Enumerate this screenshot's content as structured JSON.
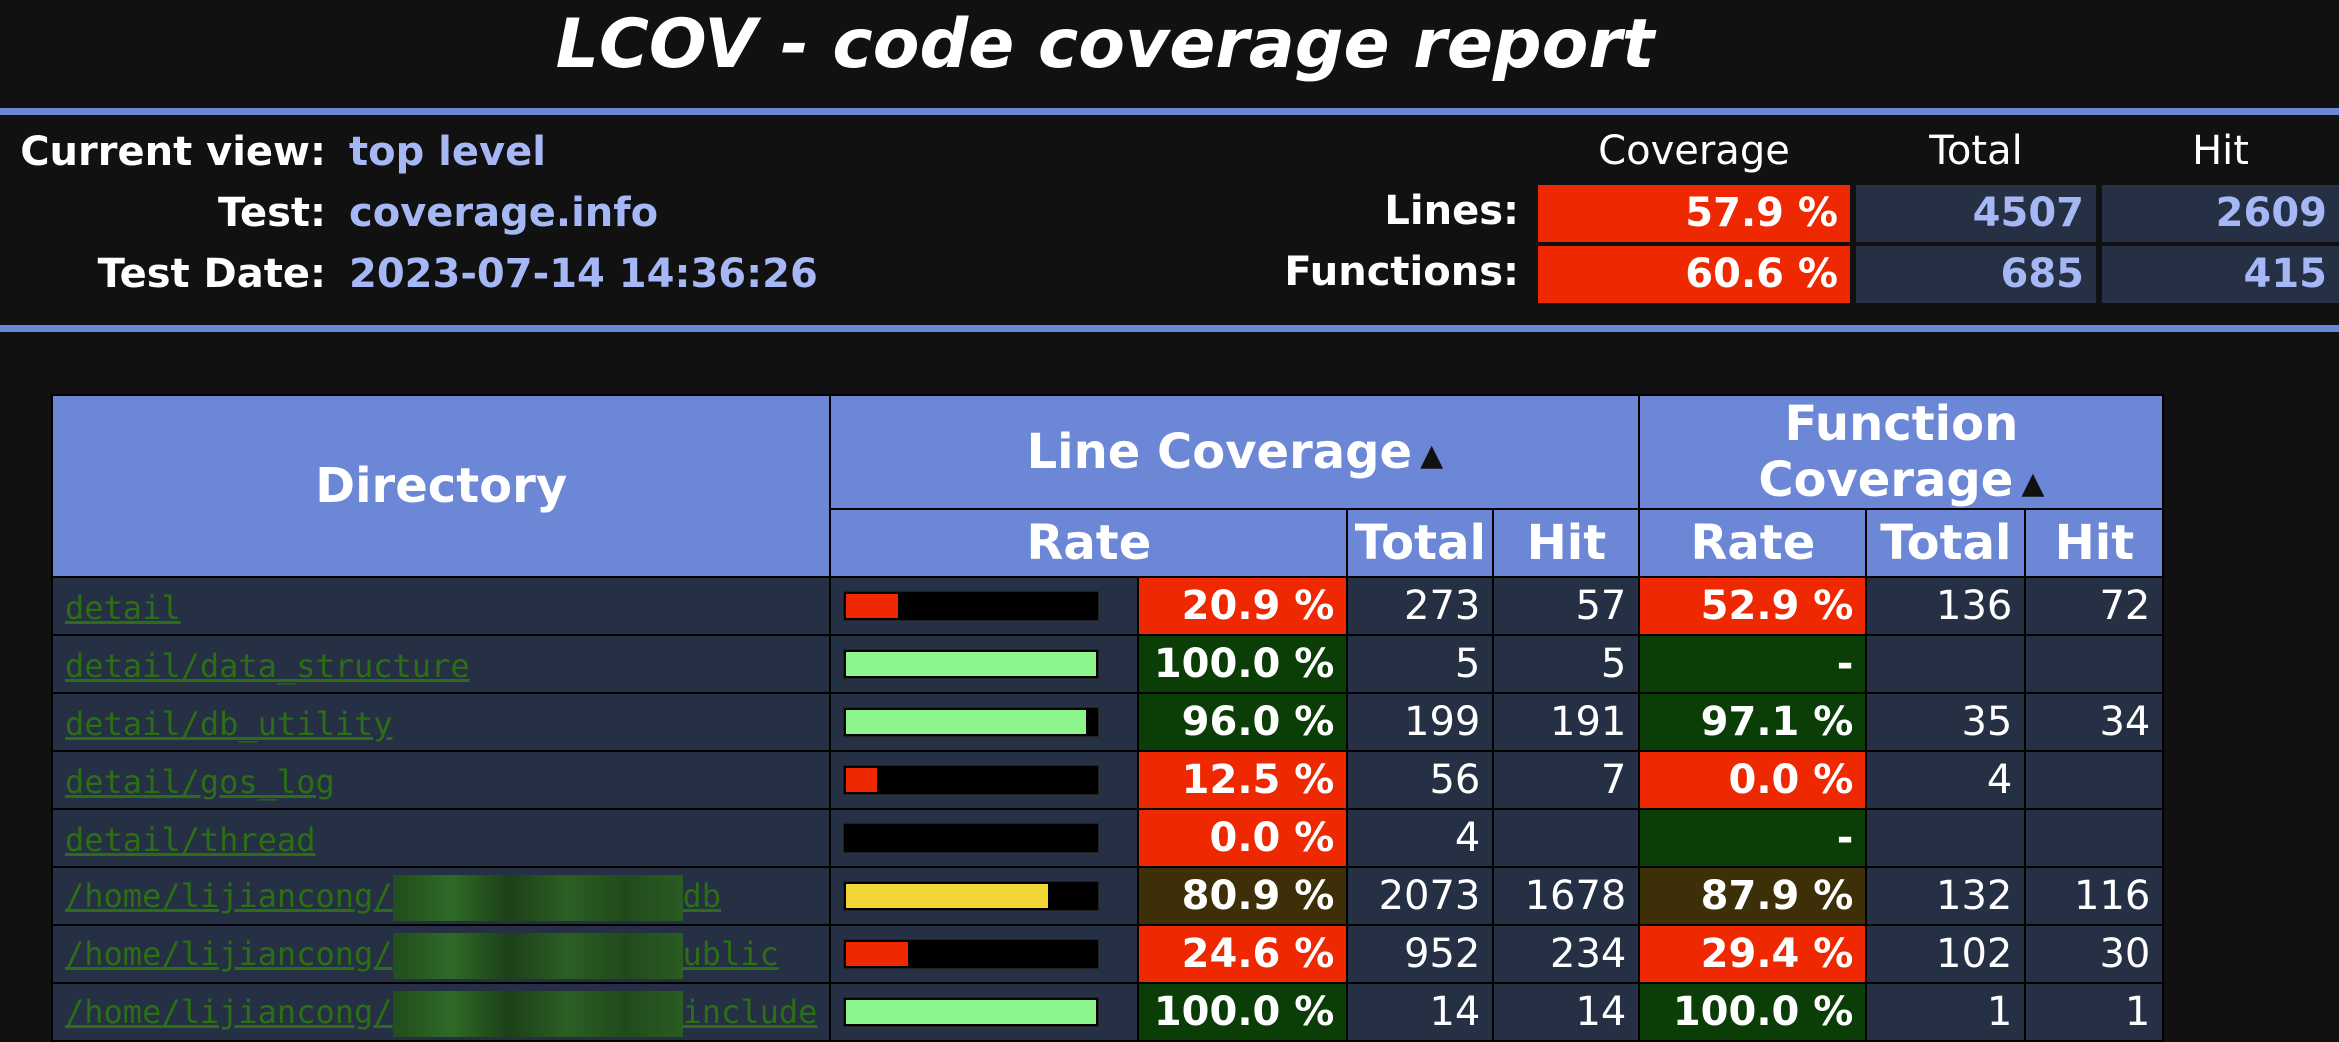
{
  "title": "LCOV - code coverage report",
  "info": {
    "current_view_label": "Current view:",
    "current_view_value": "top level",
    "test_label": "Test:",
    "test_value": "coverage.info",
    "date_label": "Test Date:",
    "date_value": "2023-07-14 14:36:26"
  },
  "summary": {
    "headers": {
      "coverage": "Coverage",
      "total": "Total",
      "hit": "Hit"
    },
    "lines": {
      "label": "Lines:",
      "coverage": "57.9 %",
      "total": "4507",
      "hit": "2609"
    },
    "functions": {
      "label": "Functions:",
      "coverage": "60.6 %",
      "total": "685",
      "hit": "415"
    }
  },
  "table": {
    "headers": {
      "directory": "Directory",
      "line_coverage": "Line Coverage",
      "function_coverage": "Function Coverage",
      "rate": "Rate",
      "total": "Total",
      "hit": "Hit",
      "sort_icon": "sort-icon"
    },
    "rows": [
      {
        "name": "detail",
        "bar_fill": 0.209,
        "bar_color": "#ee2800",
        "line_rate": "20.9 %",
        "line_level": "lo",
        "line_total": "273",
        "line_hit": "57",
        "func_rate": "52.9 %",
        "func_level": "lo",
        "func_total": "136",
        "func_hit": "72"
      },
      {
        "name": "detail/data_structure",
        "bar_fill": 1.0,
        "bar_color": "#8cf58c",
        "line_rate": "100.0 %",
        "line_level": "hi",
        "line_total": "5",
        "line_hit": "5",
        "func_rate": "-",
        "func_level": "hi",
        "func_total": "",
        "func_hit": ""
      },
      {
        "name": "detail/db_utility",
        "bar_fill": 0.96,
        "bar_color": "#8cf58c",
        "line_rate": "96.0 %",
        "line_level": "hi",
        "line_total": "199",
        "line_hit": "191",
        "func_rate": "97.1 %",
        "func_level": "hi",
        "func_total": "35",
        "func_hit": "34"
      },
      {
        "name": "detail/gos_log",
        "bar_fill": 0.125,
        "bar_color": "#ee2800",
        "line_rate": "12.5 %",
        "line_level": "lo",
        "line_total": "56",
        "line_hit": "7",
        "func_rate": "0.0 %",
        "func_level": "lo",
        "func_total": "4",
        "func_hit": ""
      },
      {
        "name": "detail/thread",
        "bar_fill": 0.0,
        "bar_color": "#ee2800",
        "line_rate": "0.0 %",
        "line_level": "lo",
        "line_total": "4",
        "line_hit": "",
        "func_rate": "-",
        "func_level": "hi",
        "func_total": "",
        "func_hit": ""
      },
      {
        "name_prefix": "/home/lijiancong/",
        "name_suffix": "db",
        "bar_fill": 0.809,
        "bar_color": "#f2d635",
        "line_rate": "80.9 %",
        "line_level": "med",
        "line_total": "2073",
        "line_hit": "1678",
        "func_rate": "87.9 %",
        "func_level": "med",
        "func_total": "132",
        "func_hit": "116"
      },
      {
        "name_prefix": "/home/lijiancong/",
        "name_suffix": "ublic",
        "bar_fill": 0.246,
        "bar_color": "#ee2800",
        "line_rate": "24.6 %",
        "line_level": "lo",
        "line_total": "952",
        "line_hit": "234",
        "func_rate": "29.4 %",
        "func_level": "lo",
        "func_total": "102",
        "func_hit": "30"
      },
      {
        "name_prefix": "/home/lijiancong/",
        "name_suffix": "include",
        "bar_fill": 1.0,
        "bar_color": "#8cf58c",
        "line_rate": "100.0 %",
        "line_level": "hi",
        "line_total": "14",
        "line_hit": "14",
        "func_rate": "100.0 %",
        "func_level": "hi",
        "func_total": "1",
        "func_hit": "1"
      }
    ]
  }
}
